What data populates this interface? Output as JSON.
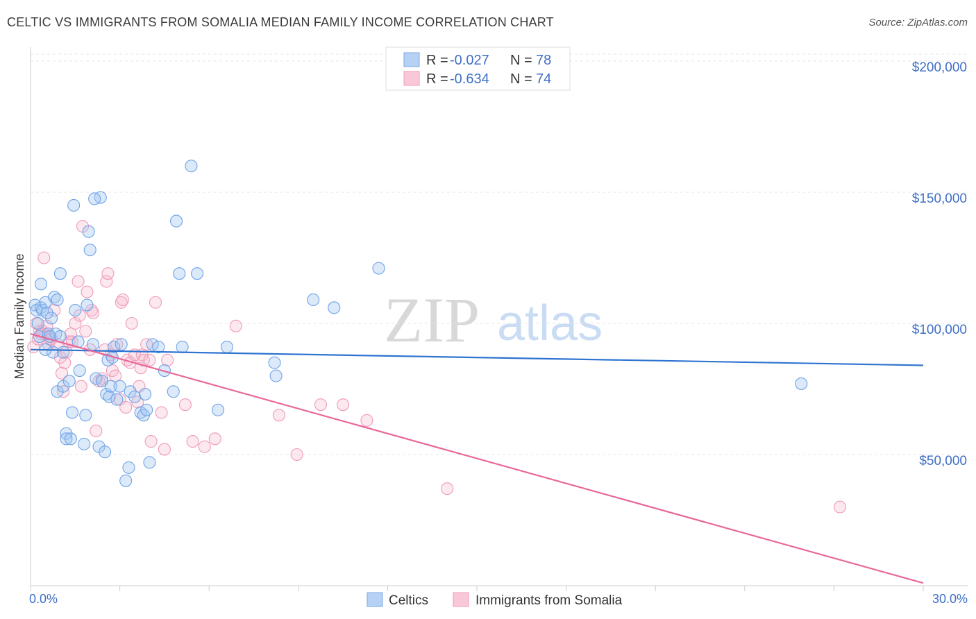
{
  "header": {
    "title": "CELTIC VS IMMIGRANTS FROM SOMALIA MEDIAN FAMILY INCOME CORRELATION CHART",
    "source": "Source: ZipAtlas.com"
  },
  "watermark": {
    "zip": "ZIP",
    "atlas": "atlas"
  },
  "legend": {
    "r_label": "R =",
    "n_label": "N =",
    "rows": [
      {
        "r": "-0.027",
        "n": "78"
      },
      {
        "r": "-0.634",
        "n": "74"
      }
    ]
  },
  "chart_data": {
    "type": "scatter",
    "title": "CELTIC VS IMMIGRANTS FROM SOMALIA MEDIAN FAMILY INCOME CORRELATION CHART",
    "xlabel": "",
    "ylabel": "Median Family Income",
    "xlim": [
      0,
      30
    ],
    "ylim": [
      0,
      205000
    ],
    "x_tick_labels": [
      "0.0%",
      "30.0%"
    ],
    "y_ticks": [
      50000,
      100000,
      150000,
      200000
    ],
    "y_tick_labels": [
      "$50,000",
      "$100,000",
      "$150,000",
      "$200,000"
    ],
    "grid": true,
    "legend_position": "top-center",
    "colors": {
      "celtics": "#6fa3e8",
      "somalia": "#f19ab7",
      "celtics_line": "#2e74d0",
      "somalia_line": "#e8679a",
      "axis_text": "#3e6fc7"
    },
    "series": [
      {
        "name": "Celtics",
        "r": -0.027,
        "n": 78,
        "trend": {
          "x0": 0,
          "y0": 90000,
          "x1": 30,
          "y1": 84000
        },
        "points": [
          [
            0.15,
            107000
          ],
          [
            0.2,
            105000
          ],
          [
            0.25,
            100000
          ],
          [
            0.3,
            95000
          ],
          [
            0.35,
            106000
          ],
          [
            0.4,
            105000
          ],
          [
            0.35,
            115000
          ],
          [
            0.5,
            108000
          ],
          [
            0.6,
            96000
          ],
          [
            0.7,
            102000
          ],
          [
            0.8,
            110000
          ],
          [
            0.9,
            109000
          ],
          [
            0.75,
            89000
          ],
          [
            0.85,
            96000
          ],
          [
            1.0,
            119000
          ],
          [
            1.1,
            89000
          ],
          [
            0.9,
            74000
          ],
          [
            1.1,
            76000
          ],
          [
            1.2,
            58000
          ],
          [
            1.2,
            56000
          ],
          [
            1.3,
            78000
          ],
          [
            1.4,
            66000
          ],
          [
            1.35,
            56000
          ],
          [
            1.5,
            105000
          ],
          [
            1.6,
            93000
          ],
          [
            1.65,
            82000
          ],
          [
            1.8,
            54000
          ],
          [
            1.85,
            65000
          ],
          [
            1.9,
            107000
          ],
          [
            1.95,
            135000
          ],
          [
            2.0,
            128000
          ],
          [
            2.1,
            92000
          ],
          [
            2.2,
            79000
          ],
          [
            2.3,
            53000
          ],
          [
            2.35,
            148000
          ],
          [
            2.4,
            78000
          ],
          [
            2.5,
            51000
          ],
          [
            2.55,
            73000
          ],
          [
            2.6,
            86000
          ],
          [
            2.65,
            72000
          ],
          [
            2.7,
            76000
          ],
          [
            2.75,
            87000
          ],
          [
            2.8,
            91000
          ],
          [
            2.9,
            71000
          ],
          [
            3.0,
            76000
          ],
          [
            3.05,
            92000
          ],
          [
            3.2,
            40000
          ],
          [
            3.3,
            45000
          ],
          [
            3.35,
            74000
          ],
          [
            3.5,
            72000
          ],
          [
            3.7,
            66000
          ],
          [
            3.8,
            65000
          ],
          [
            3.85,
            73000
          ],
          [
            3.9,
            67000
          ],
          [
            4.0,
            47000
          ],
          [
            4.1,
            92000
          ],
          [
            4.3,
            91000
          ],
          [
            4.5,
            82000
          ],
          [
            4.8,
            74000
          ],
          [
            4.9,
            139000
          ],
          [
            5.0,
            119000
          ],
          [
            5.1,
            91000
          ],
          [
            5.4,
            160000
          ],
          [
            5.6,
            119000
          ],
          [
            6.3,
            67000
          ],
          [
            6.6,
            91000
          ],
          [
            8.2,
            85000
          ],
          [
            8.25,
            80000
          ],
          [
            9.5,
            109000
          ],
          [
            10.2,
            106000
          ],
          [
            11.7,
            121000
          ],
          [
            1.45,
            145000
          ],
          [
            0.5,
            90000
          ],
          [
            1.0,
            95000
          ],
          [
            0.65,
            95000
          ],
          [
            2.15,
            147500
          ],
          [
            25.9,
            77000
          ],
          [
            0.55,
            104000
          ]
        ]
      },
      {
        "name": "Immigrants from Somalia",
        "r": -0.634,
        "n": 74,
        "trend": {
          "x0": 0,
          "y0": 96000,
          "x1": 30,
          "y1": 1000
        },
        "points": [
          [
            0.1,
            91000
          ],
          [
            0.2,
            100000
          ],
          [
            0.25,
            94000
          ],
          [
            0.3,
            97000
          ],
          [
            0.4,
            97000
          ],
          [
            0.5,
            96000
          ],
          [
            0.55,
            99000
          ],
          [
            0.6,
            92000
          ],
          [
            0.65,
            94000
          ],
          [
            0.7,
            94000
          ],
          [
            0.8,
            105000
          ],
          [
            0.9,
            92000
          ],
          [
            1.0,
            87000
          ],
          [
            1.05,
            81000
          ],
          [
            1.1,
            74000
          ],
          [
            1.15,
            85000
          ],
          [
            1.2,
            89000
          ],
          [
            1.3,
            93000
          ],
          [
            1.4,
            93000
          ],
          [
            1.5,
            100000
          ],
          [
            1.6,
            116000
          ],
          [
            1.65,
            103000
          ],
          [
            1.7,
            76000
          ],
          [
            1.75,
            137000
          ],
          [
            1.85,
            97000
          ],
          [
            1.9,
            112000
          ],
          [
            2.0,
            90000
          ],
          [
            2.05,
            105000
          ],
          [
            2.1,
            104000
          ],
          [
            2.2,
            59000
          ],
          [
            2.3,
            78000
          ],
          [
            2.4,
            79000
          ],
          [
            2.5,
            90000
          ],
          [
            2.55,
            116000
          ],
          [
            2.6,
            119000
          ],
          [
            2.7,
            88000
          ],
          [
            2.75,
            82000
          ],
          [
            2.85,
            80000
          ],
          [
            2.9,
            92000
          ],
          [
            3.0,
            71000
          ],
          [
            3.05,
            108000
          ],
          [
            3.1,
            109000
          ],
          [
            3.2,
            68000
          ],
          [
            3.25,
            86000
          ],
          [
            3.35,
            85000
          ],
          [
            3.4,
            100000
          ],
          [
            3.5,
            88000
          ],
          [
            3.6,
            70000
          ],
          [
            3.65,
            76000
          ],
          [
            3.7,
            83000
          ],
          [
            3.75,
            88000
          ],
          [
            3.8,
            86000
          ],
          [
            3.9,
            92000
          ],
          [
            4.0,
            86000
          ],
          [
            4.05,
            55000
          ],
          [
            4.2,
            108000
          ],
          [
            4.4,
            66000
          ],
          [
            4.5,
            52000
          ],
          [
            4.6,
            86000
          ],
          [
            5.2,
            69000
          ],
          [
            5.45,
            55000
          ],
          [
            5.85,
            53000
          ],
          [
            6.2,
            56000
          ],
          [
            6.9,
            99000
          ],
          [
            8.35,
            65000
          ],
          [
            8.95,
            50000
          ],
          [
            9.75,
            69000
          ],
          [
            10.5,
            69000
          ],
          [
            11.3,
            63000
          ],
          [
            14.0,
            37000
          ],
          [
            27.2,
            30000
          ],
          [
            0.45,
            125000
          ],
          [
            1.35,
            96000
          ],
          [
            0.35,
            96000
          ]
        ]
      }
    ]
  },
  "bottom_legend": {
    "a": "Celtics",
    "b": "Immigrants from Somalia"
  }
}
